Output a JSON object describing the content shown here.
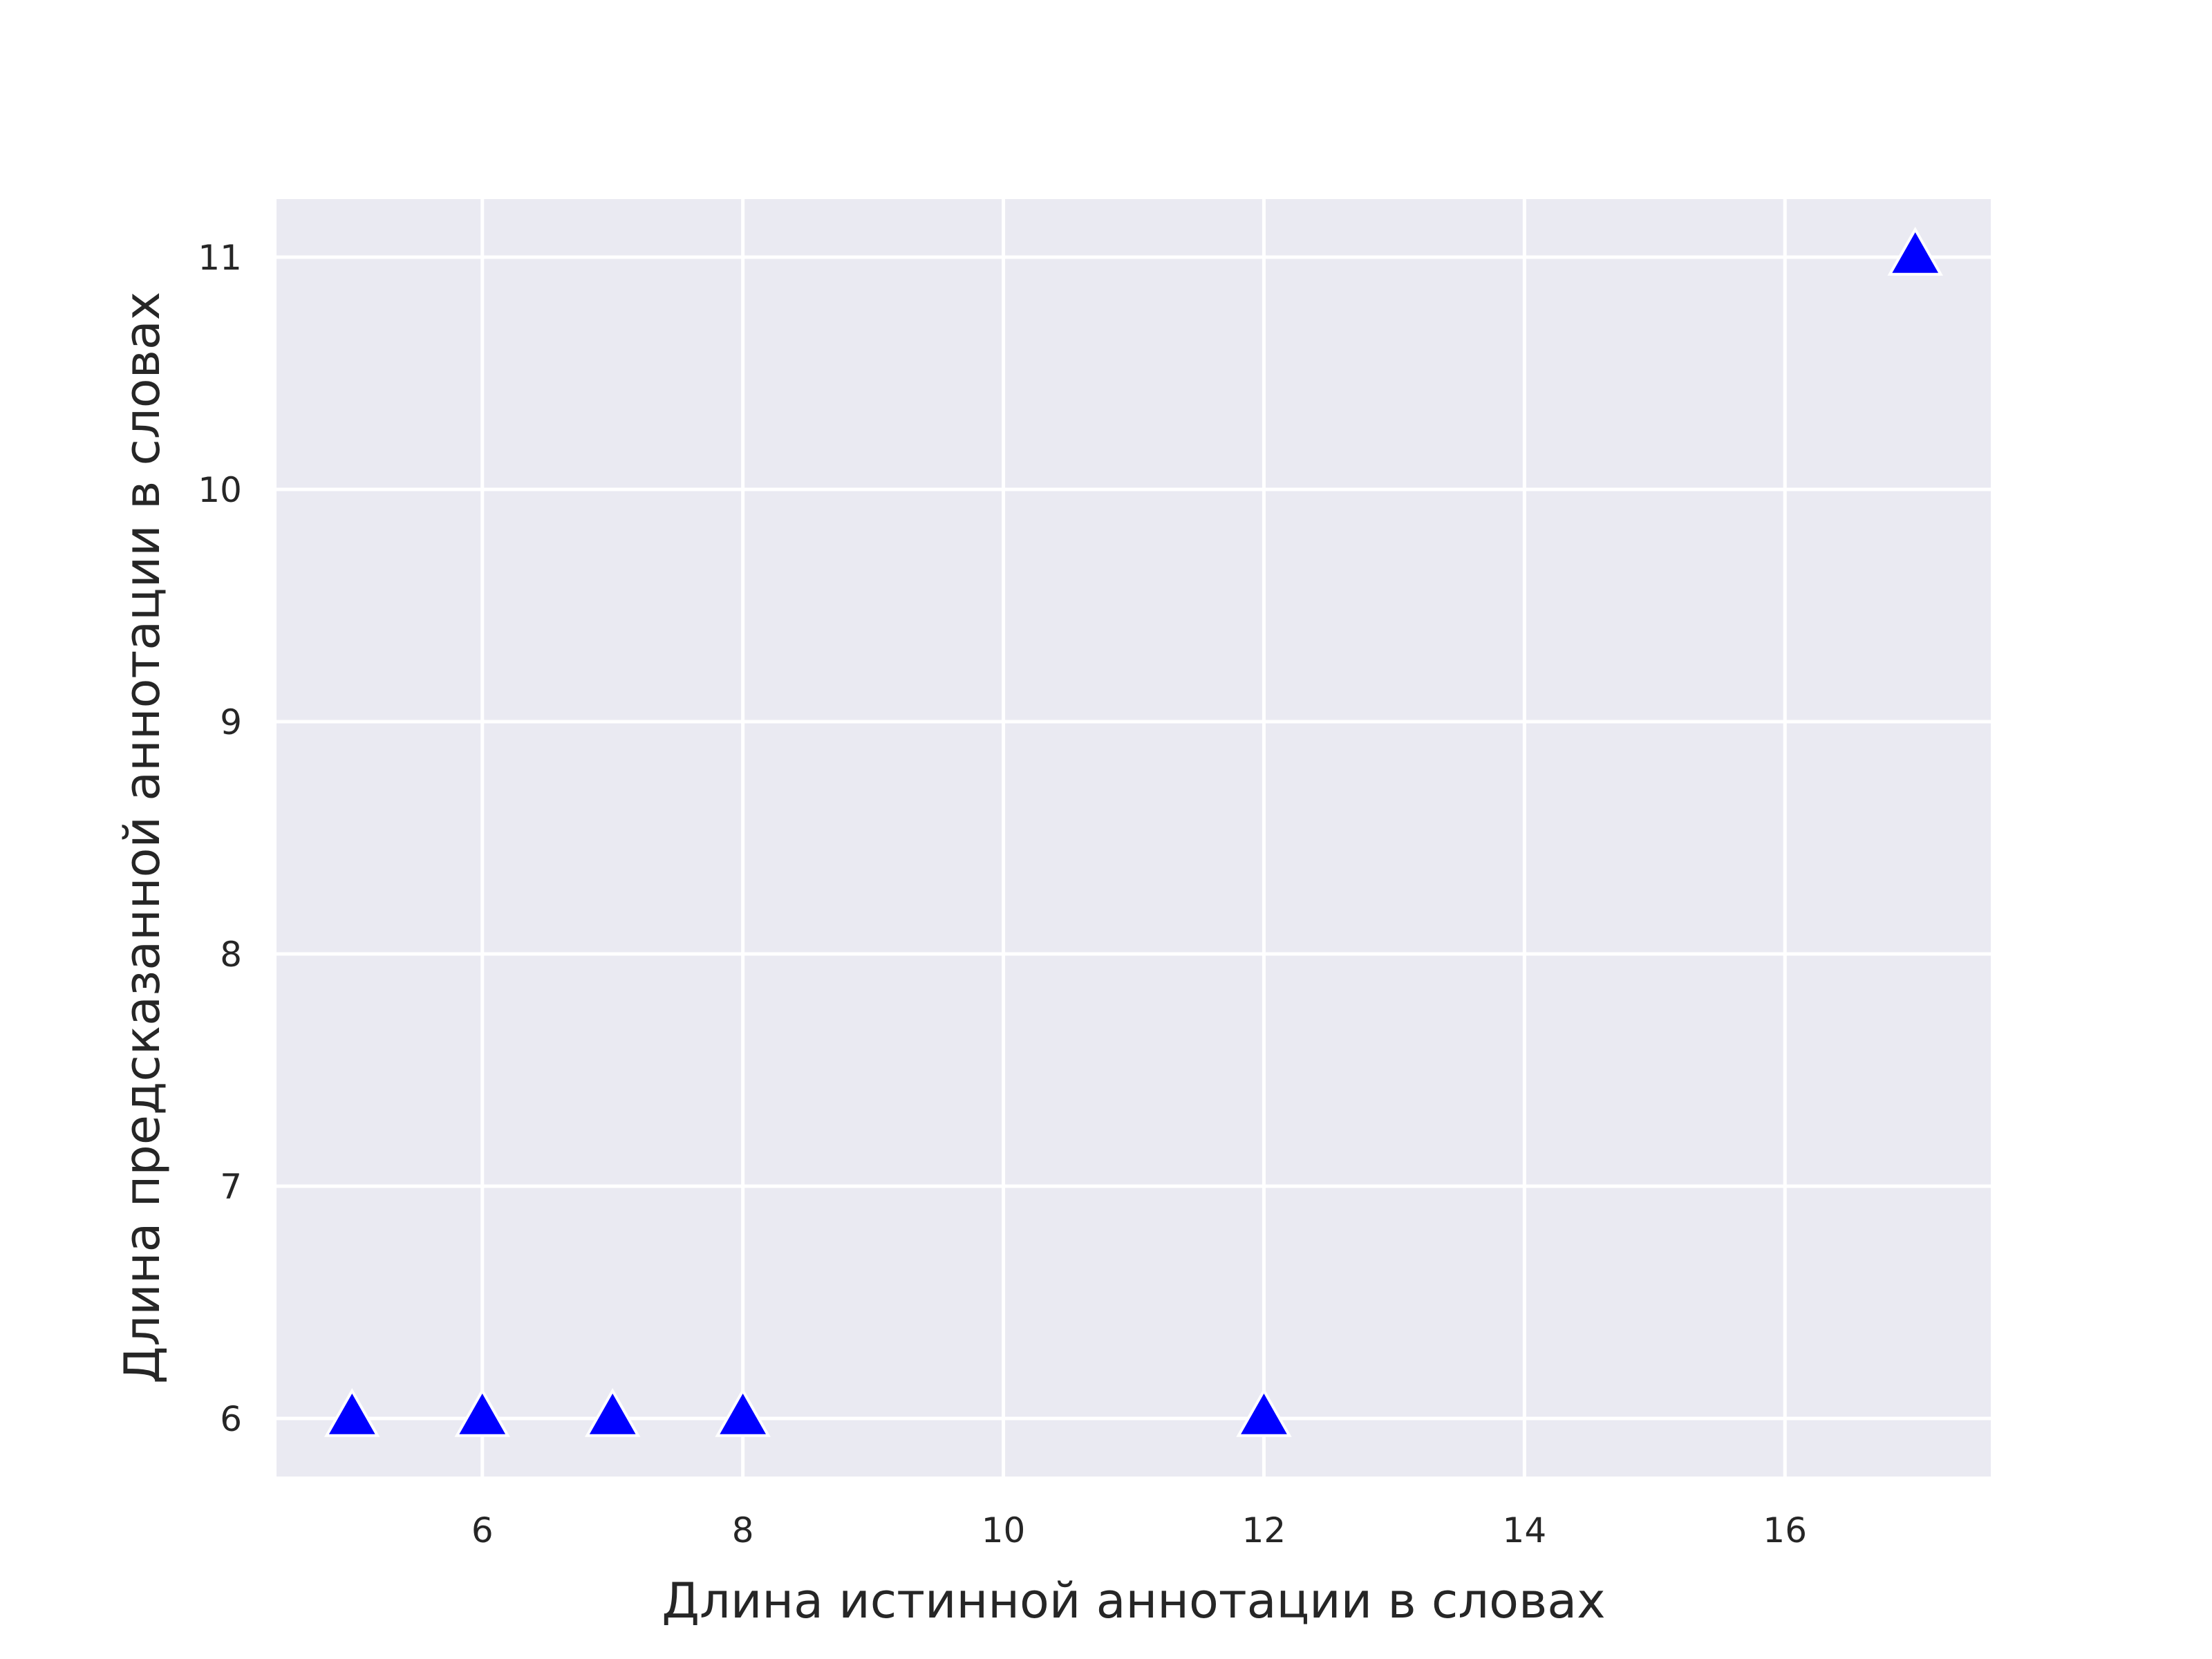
{
  "chart_data": {
    "type": "scatter",
    "title": "",
    "xlabel": "Длина истинной аннотации в словах",
    "ylabel": "Длина предсказанной аннотации в словах",
    "xlim": [
      4.42,
      17.58
    ],
    "ylim": [
      5.75,
      11.25
    ],
    "xticks": [
      6,
      8,
      10,
      12,
      14,
      16
    ],
    "yticks": [
      6,
      7,
      8,
      9,
      10,
      11
    ],
    "grid": true,
    "marker": "triangle-up",
    "colors": {
      "plot_background": "#eaeaf2",
      "grid": "#ffffff",
      "marker_fill": "#0000ff",
      "marker_edge": "#ffffff",
      "text": "#262626"
    },
    "series": [
      {
        "points": [
          {
            "x": 5,
            "y": 6
          },
          {
            "x": 6,
            "y": 6
          },
          {
            "x": 7,
            "y": 6
          },
          {
            "x": 8,
            "y": 6
          },
          {
            "x": 12,
            "y": 6
          },
          {
            "x": 17,
            "y": 11
          }
        ]
      }
    ]
  }
}
